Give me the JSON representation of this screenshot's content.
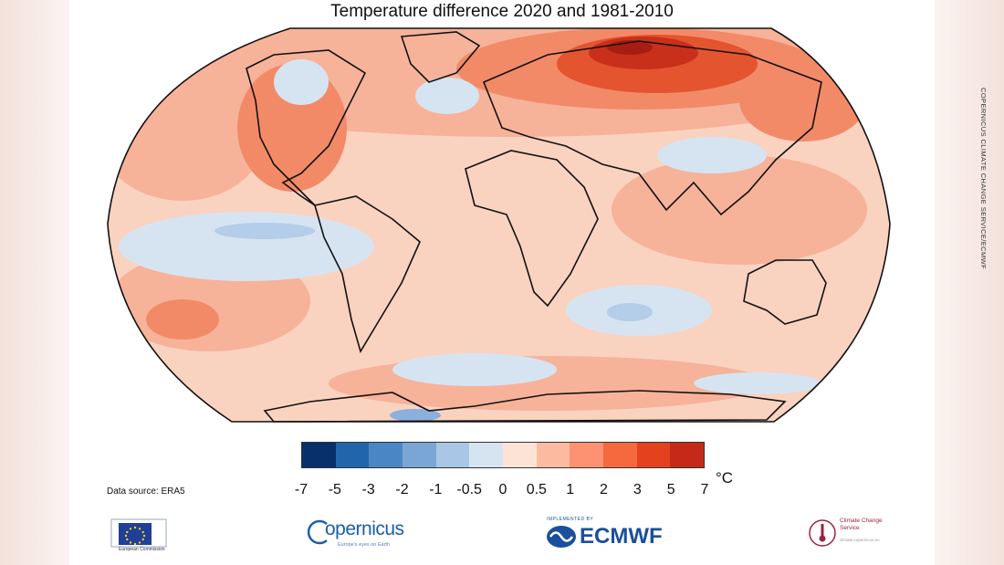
{
  "title": "Temperature difference 2020 and 1981-2010",
  "vertical_credit": "COPERNICUS CLIMATE CHANGE SERVICE/ECMWF",
  "legend": {
    "unit": "°C",
    "tick_labels": [
      "-7",
      "-5",
      "-3",
      "-2",
      "-1",
      "-0.5",
      "0",
      "0.5",
      "1",
      "2",
      "3",
      "5",
      "7"
    ],
    "colors": [
      "#08306b",
      "#2166ac",
      "#4a86c5",
      "#7aa6d6",
      "#a9c6e6",
      "#d6e4f2",
      "#fde3d6",
      "#fcbba1",
      "#fc9272",
      "#f6683e",
      "#e4411e",
      "#c42a17",
      "#99150e"
    ]
  },
  "data_source": "Data source: ERA5",
  "logos": {
    "eu_caption": "European Commission",
    "copernicus_name": "opernicus",
    "copernicus_tagline": "Europe's eyes on Earth",
    "ecmwf_implemented": "IMPLEMENTED BY",
    "ecmwf_name": "ECMWF",
    "c3s_name": "Climate Change Service",
    "c3s_url": "climate.copernicus.eu"
  },
  "map_colors": {
    "base": "#fad2c0",
    "ocean_warm": "#f7b29a",
    "warm": "#f28a68",
    "hot": "#e4542f",
    "very_hot": "#c8301b",
    "extreme": "#a81d12",
    "cool": "#d6e4f2",
    "cooler": "#b4cde8",
    "cold": "#8ab0db"
  }
}
